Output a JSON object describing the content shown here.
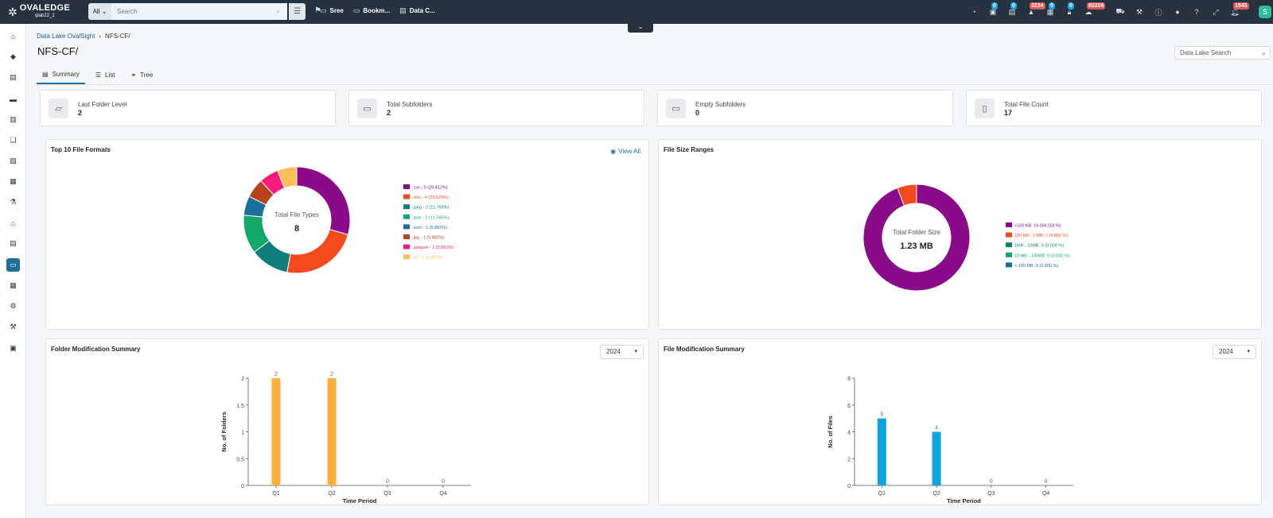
{
  "app": {
    "logo_name": "OVALEDGE",
    "logo_sub": "qlab22_1",
    "search_scope": "All",
    "search_placeholder": "Search",
    "nav": [
      {
        "label": "Sree",
        "icon": "folder-icon"
      },
      {
        "label": "Bookm...",
        "icon": "folder-icon"
      },
      {
        "label": "Data C...",
        "icon": "catalog-icon"
      }
    ],
    "badges": {
      "b1": "0",
      "b2": "0",
      "b3": "3234",
      "b4": "0",
      "b5": "0",
      "b6": "80206",
      "b7": "1545"
    },
    "avatar": "S"
  },
  "breadcrumb": {
    "root": "Data Lake OvalSight",
    "current": "NFS-CF/"
  },
  "page_title": "NFS-CF/",
  "data_lake_search_placeholder": "Data Lake Search",
  "tabs": [
    {
      "label": "Summary"
    },
    {
      "label": "List"
    },
    {
      "label": "Tree"
    }
  ],
  "stats": [
    {
      "label": "Last Folder Level",
      "value": "2"
    },
    {
      "label": "Total Subfolders",
      "value": "2"
    },
    {
      "label": "Empty Subfolders",
      "value": "0"
    },
    {
      "label": "Total File Count",
      "value": "17"
    }
  ],
  "panels": {
    "formats_title": "Top 10 File Formats",
    "view_all": "View All",
    "sizes_title": "File Size Ranges",
    "folder_mod_title": "Folder Modification Summary",
    "file_mod_title": "File Modification Summary",
    "folder_year": "2024",
    "file_year": "2024"
  },
  "chart_data": [
    {
      "type": "pie",
      "title": "Top 10 File Formats",
      "center_label": "Total File Types",
      "center_value": "8",
      "slices": [
        {
          "label": ".csv - 5 (29.412%)",
          "value": 5,
          "color": "#8b0a8a"
        },
        {
          "label": ".xlsx - 4 (23.529%)",
          "value": 4,
          "color": "#f74a1c"
        },
        {
          "label": ".jpeg - 2 (11.765%)",
          "value": 2,
          "color": "#0f7d7a"
        },
        {
          "label": ".json - 2 (11.765%)",
          "value": 2,
          "color": "#12a86a"
        },
        {
          "label": ".avro - 1 (5.882%)",
          "value": 1,
          "color": "#1a6f9e"
        },
        {
          "label": ".jpg - 1 (5.882%)",
          "value": 1,
          "color": "#b8421a"
        },
        {
          "label": ".parquet - 1 (5.882%)",
          "value": 1,
          "color": "#fb1b7a"
        },
        {
          "label": ".txt - 1 (5.882%)",
          "value": 1,
          "color": "#fbbf5a"
        }
      ]
    },
    {
      "type": "pie",
      "title": "File Size Ranges",
      "center_label": "Total Folder Size",
      "center_value": "1.23 MB",
      "slices": [
        {
          "label": "<100 KB: 16 (94.118 %)",
          "value": 16,
          "color": "#8b0a8a"
        },
        {
          "label": "100 KB - 1 MB: 1 (5.882 %)",
          "value": 1,
          "color": "#f74a1c"
        },
        {
          "label": "1MB - 10MB: 0 (0.000 %)",
          "value": 0,
          "color": "#0f7d7a"
        },
        {
          "label": "10 MB - 100MB: 0 (0.000 %)",
          "value": 0,
          "color": "#12a86a"
        },
        {
          "label": "> 100 MB: 0 (0.000 %)",
          "value": 0,
          "color": "#1a6f9e"
        }
      ]
    },
    {
      "type": "bar",
      "title": "Folder Modification Summary",
      "categories": [
        "Q1",
        "Q2",
        "Q3",
        "Q4"
      ],
      "values": [
        2,
        2,
        0,
        0
      ],
      "ylim": [
        0,
        2
      ],
      "yticks": [
        "0",
        "0.5",
        "1",
        "1.5",
        "2"
      ],
      "xlabel": "Time Period",
      "ylabel": "No. of Folders",
      "color": "#fbb03b"
    },
    {
      "type": "bar",
      "title": "File Modification Summary",
      "categories": [
        "Q1",
        "Q2",
        "Q3",
        "Q4"
      ],
      "values": [
        5,
        4,
        0,
        0
      ],
      "ylim": [
        0,
        8
      ],
      "yticks": [
        "0",
        "2",
        "4",
        "6",
        "8"
      ],
      "xlabel": "Time Period",
      "ylabel": "No. of Files",
      "color": "#0ea5de"
    }
  ]
}
